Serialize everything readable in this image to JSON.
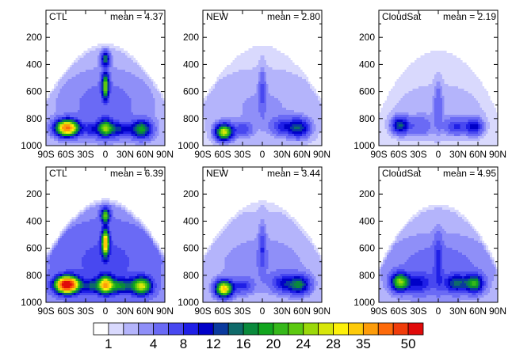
{
  "chart_data": {
    "type": "heatmap",
    "panels": [
      {
        "id": "ctl-top",
        "title": "CTL",
        "mean_text": "mean = 4.37",
        "field": "ctl",
        "scale": 1.0
      },
      {
        "id": "new-top",
        "title": "NEW",
        "mean_text": "mean = 2.80",
        "field": "new",
        "scale": 0.85
      },
      {
        "id": "cloudsat-top",
        "title": "CloudSat",
        "mean_text": "mean = 2.19",
        "field": "cs",
        "scale": 0.75
      },
      {
        "id": "ctl-bottom",
        "title": "CTL",
        "mean_text": "mean = 6.39",
        "field": "ctl",
        "scale": 1.45
      },
      {
        "id": "new-bottom",
        "title": "NEW",
        "mean_text": "mean = 3.44",
        "field": "new",
        "scale": 1.0
      },
      {
        "id": "cloudsat-bottom",
        "title": "CloudSat",
        "mean_text": "mean = 4.95",
        "field": "cs",
        "scale": 1.35
      }
    ],
    "x_ticks": [
      "90S",
      "60S",
      "30S",
      "0",
      "30N",
      "60N",
      "90N"
    ],
    "x_values": [
      -90,
      -60,
      -30,
      0,
      30,
      60,
      90
    ],
    "y_ticks": [
      "200",
      "400",
      "600",
      "800",
      "1000"
    ],
    "y_values": [
      200,
      400,
      600,
      800,
      1000
    ],
    "xlim": [
      -90,
      90
    ],
    "ylim": [
      1000,
      0
    ],
    "colorbar": {
      "levels": [
        1,
        2,
        3,
        4,
        6,
        8,
        10,
        12,
        14,
        16,
        18,
        20,
        22,
        24,
        26,
        28,
        30,
        35,
        40,
        45,
        50
      ],
      "labels": [
        "1",
        "4",
        "8",
        "12",
        "16",
        "20",
        "24",
        "28",
        "35",
        "50"
      ],
      "colors": [
        "#ffffff",
        "#d9d9fd",
        "#b4b4fb",
        "#8f8ff8",
        "#6a6af5",
        "#4848f0",
        "#1f1fe6",
        "#0000c8",
        "#0a3a9e",
        "#0f6a6a",
        "#0a8a3c",
        "#12a51e",
        "#36b81a",
        "#5cc910",
        "#9bd80a",
        "#d7e60a",
        "#fdf00a",
        "#fdca0a",
        "#fd9c0a",
        "#fd6a0a",
        "#f03c0a",
        "#e00a0a"
      ]
    }
  }
}
